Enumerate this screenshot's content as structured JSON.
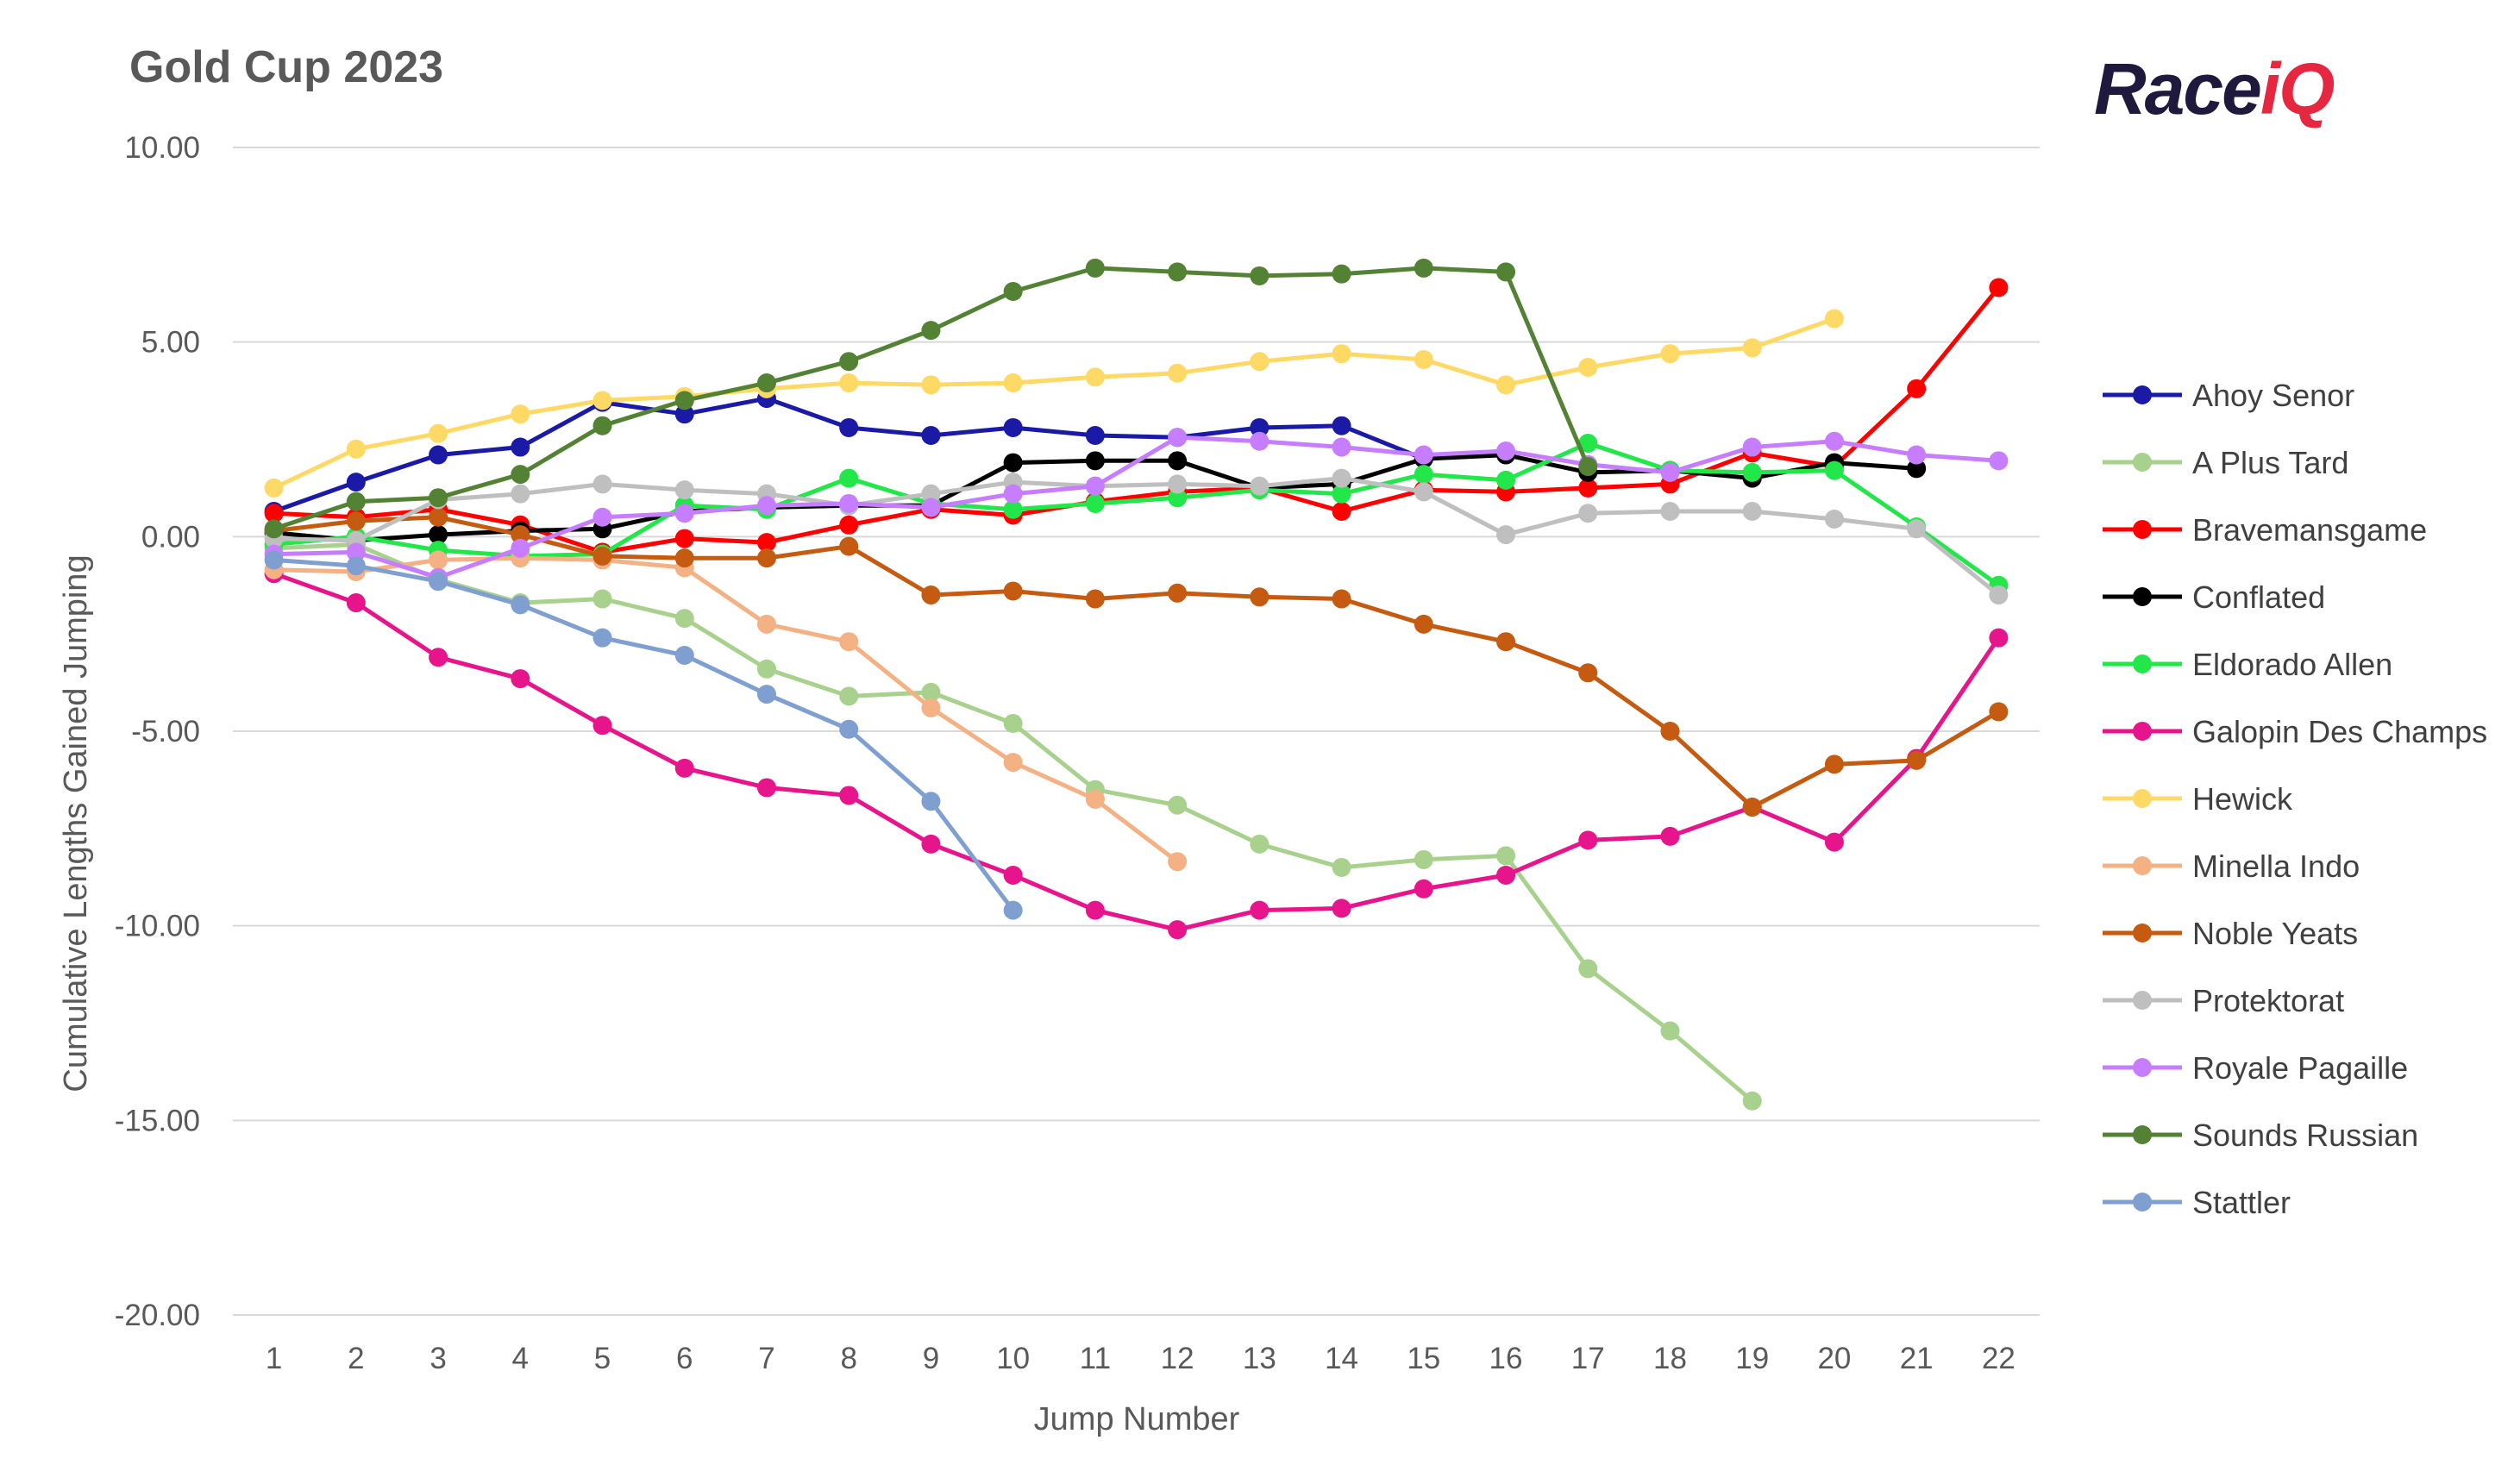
{
  "chart_data": {
    "type": "line",
    "title": "Gold Cup 2023",
    "xlabel": "Jump Number",
    "ylabel": "Cumulative Lengths Gained Jumping",
    "ylim": [
      -20,
      10
    ],
    "yticks": [
      "10.00",
      "5.00",
      "0.00",
      "-5.00",
      "-10.00",
      "-15.00",
      "-20.00"
    ],
    "ytick_values": [
      10,
      5,
      0,
      -5,
      -10,
      -15,
      -20
    ],
    "x": [
      1,
      2,
      3,
      4,
      5,
      6,
      7,
      8,
      9,
      10,
      11,
      12,
      13,
      14,
      15,
      16,
      17,
      18,
      19,
      20,
      21,
      22
    ],
    "grid": "horizontal",
    "legend_position": "right",
    "logo_text": {
      "part1": "Race",
      "part2": "iQ"
    },
    "series": [
      {
        "name": "Ahoy Senor",
        "color": "#1a1aa6",
        "values": [
          0.65,
          1.4,
          2.1,
          2.3,
          3.45,
          3.15,
          3.55,
          2.8,
          2.6,
          2.8,
          2.6,
          2.55,
          2.8,
          2.85,
          2.0,
          null,
          null,
          null,
          null,
          null,
          null,
          null
        ]
      },
      {
        "name": "A Plus Tard",
        "color": "#a9d18e",
        "values": [
          -0.3,
          -0.2,
          -1.1,
          -1.7,
          -1.6,
          -2.1,
          -3.4,
          -4.1,
          -4.0,
          -4.8,
          -6.5,
          -6.9,
          -7.9,
          -8.5,
          -8.3,
          -8.2,
          -11.1,
          -12.7,
          -14.5,
          null,
          null,
          null
        ]
      },
      {
        "name": "Bravemansgame",
        "color": "#ff0000",
        "values": [
          0.6,
          0.5,
          0.7,
          0.3,
          -0.4,
          -0.05,
          -0.15,
          0.3,
          0.7,
          0.55,
          0.9,
          1.15,
          1.25,
          0.65,
          1.2,
          1.15,
          1.25,
          1.35,
          2.15,
          1.8,
          3.8,
          6.4
        ]
      },
      {
        "name": "Conflated",
        "color": "#000000",
        "values": [
          0.1,
          -0.1,
          0.05,
          0.15,
          0.2,
          0.65,
          0.75,
          0.8,
          0.8,
          1.9,
          1.95,
          1.95,
          1.25,
          1.35,
          2.0,
          2.1,
          1.65,
          1.7,
          1.5,
          1.9,
          1.75,
          null
        ]
      },
      {
        "name": "Eldorado Allen",
        "color": "#22e64a",
        "values": [
          -0.2,
          0.0,
          -0.35,
          -0.5,
          -0.45,
          0.8,
          0.7,
          1.5,
          0.85,
          0.7,
          0.85,
          1.0,
          1.2,
          1.1,
          1.6,
          1.45,
          2.4,
          1.7,
          1.65,
          1.7,
          0.25,
          -1.25
        ]
      },
      {
        "name": "Galopin Des Champs",
        "color": "#e6158c",
        "values": [
          -0.95,
          -1.7,
          -3.1,
          -3.65,
          -4.85,
          -5.95,
          -6.45,
          -6.65,
          -7.9,
          -8.7,
          -9.6,
          -10.1,
          -9.6,
          -9.55,
          -9.05,
          -8.7,
          -7.8,
          -7.7,
          -6.95,
          -7.85,
          -5.7,
          -2.6
        ]
      },
      {
        "name": "Hewick",
        "color": "#ffd966",
        "values": [
          1.25,
          2.25,
          2.65,
          3.15,
          3.5,
          3.6,
          3.8,
          3.95,
          3.9,
          3.95,
          4.1,
          4.2,
          4.5,
          4.7,
          4.55,
          3.9,
          4.35,
          4.7,
          4.85,
          5.6,
          null,
          null
        ]
      },
      {
        "name": "Minella Indo",
        "color": "#f4b183",
        "values": [
          -0.85,
          -0.9,
          -0.6,
          -0.55,
          -0.6,
          -0.8,
          -2.25,
          -2.7,
          -4.4,
          -5.8,
          -6.75,
          -8.35,
          null,
          null,
          null,
          null,
          null,
          null,
          null,
          null,
          null,
          null
        ]
      },
      {
        "name": "Noble Yeats",
        "color": "#c55a11",
        "values": [
          0.15,
          0.4,
          0.5,
          0.05,
          -0.5,
          -0.55,
          -0.55,
          -0.25,
          -1.5,
          -1.4,
          -1.6,
          -1.45,
          -1.55,
          -1.6,
          -2.25,
          -2.7,
          -3.5,
          -5.0,
          -6.95,
          -5.85,
          -5.75,
          -4.5
        ]
      },
      {
        "name": "Protektorat",
        "color": "#bfbfbf",
        "values": [
          -0.05,
          -0.1,
          0.95,
          1.1,
          1.35,
          1.2,
          1.1,
          0.8,
          1.1,
          1.4,
          1.3,
          1.35,
          1.3,
          1.5,
          1.15,
          0.05,
          0.6,
          0.65,
          0.65,
          0.45,
          0.2,
          -1.5
        ]
      },
      {
        "name": "Royale Pagaille",
        "color": "#c77dff",
        "values": [
          -0.45,
          -0.4,
          -1.05,
          -0.3,
          0.5,
          0.6,
          0.8,
          0.85,
          0.75,
          1.1,
          1.3,
          2.55,
          2.45,
          2.3,
          2.1,
          2.2,
          1.85,
          1.65,
          2.3,
          2.45,
          2.1,
          1.95
        ]
      },
      {
        "name": "Sounds Russian",
        "color": "#548235",
        "values": [
          0.2,
          0.9,
          1.0,
          1.6,
          2.85,
          3.5,
          3.95,
          4.5,
          5.3,
          6.3,
          6.9,
          6.8,
          6.7,
          6.75,
          6.9,
          6.8,
          1.8,
          null,
          null,
          null,
          null,
          null
        ]
      },
      {
        "name": "Stattler",
        "color": "#7f9fd1",
        "values": [
          -0.6,
          -0.75,
          -1.15,
          -1.75,
          -2.6,
          -3.05,
          -4.05,
          -4.95,
          -6.8,
          -9.6,
          null,
          null,
          null,
          null,
          null,
          null,
          null,
          null,
          null,
          null,
          null,
          null
        ]
      }
    ]
  }
}
